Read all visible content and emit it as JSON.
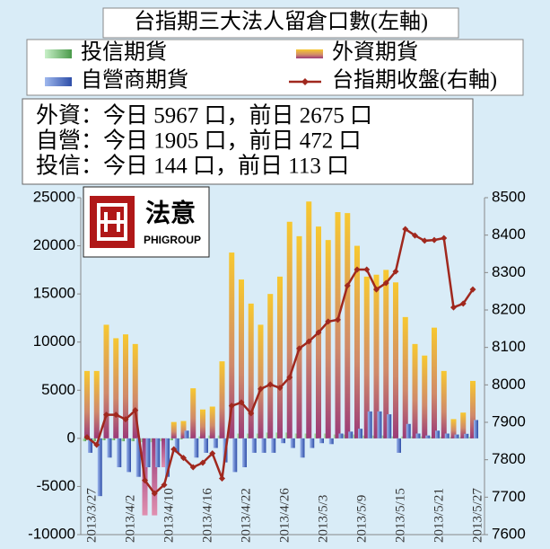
{
  "chart_data": {
    "type": "bar",
    "title": "台指期三大法人留倉口數(左軸)",
    "annotations": [
      "外資：今日 5967 口，前日 2675 口",
      "自營：今日 1905 口，前日 472 口",
      "投信：今日 144 口，前日 113 口"
    ],
    "logo": {
      "name": "法意",
      "sub": "PHIGROUP"
    },
    "categories": [
      "2013/3/27",
      null,
      null,
      null,
      "2013/4/2",
      null,
      null,
      null,
      "2013/4/10",
      null,
      null,
      null,
      "2013/4/16",
      null,
      null,
      null,
      "2013/4/22",
      null,
      null,
      null,
      "2013/4/26",
      null,
      null,
      null,
      "2013/5/3",
      null,
      null,
      null,
      "2013/5/9",
      null,
      null,
      null,
      "2013/5/15",
      null,
      null,
      null,
      "2013/5/21",
      null,
      null,
      null,
      "2013/5/27"
    ],
    "series": [
      {
        "name": "投信期貨",
        "type": "bar",
        "color": "#7fc97f",
        "values": [
          -300,
          -300,
          -200,
          -200,
          -300,
          -300,
          -400,
          -400,
          -300,
          -200,
          -100,
          100,
          200,
          300,
          300,
          400,
          500,
          500,
          500,
          600,
          600,
          600,
          500,
          500,
          500,
          500,
          400,
          400,
          400,
          300,
          300,
          300,
          200,
          200,
          200,
          200,
          150,
          150,
          120,
          113,
          144
        ]
      },
      {
        "name": "外資期貨",
        "type": "bar",
        "color": "#f2c12e",
        "values": [
          7000,
          7000,
          11800,
          10400,
          10800,
          9800,
          -8000,
          -8000,
          -3000,
          1700,
          1800,
          5200,
          3000,
          3300,
          8000,
          19300,
          16500,
          14000,
          11800,
          15000,
          16800,
          22500,
          21000,
          24600,
          22000,
          20600,
          23500,
          23400,
          20000,
          16800,
          17000,
          17500,
          16200,
          12600,
          9800,
          8600,
          11500,
          7000,
          2000,
          2675,
          5967
        ]
      },
      {
        "name": "自營商期貨",
        "type": "bar",
        "color": "#4f6fc4",
        "values": [
          -1500,
          -6000,
          -2000,
          -3000,
          -3500,
          -4000,
          -3000,
          -3000,
          -4000,
          -1500,
          800,
          -2000,
          -1500,
          -1000,
          -2500,
          -3500,
          -3000,
          -1500,
          -1500,
          -1500,
          -500,
          -1000,
          -2000,
          -1000,
          -500,
          -600,
          500,
          700,
          1000,
          2800,
          2800,
          2500,
          -1500,
          1500,
          500,
          300,
          800,
          500,
          400,
          472,
          1905
        ]
      },
      {
        "name": "台指期收盤(右軸)",
        "type": "line",
        "axis": "y2",
        "color": "#a0281e",
        "values": [
          7860,
          7840,
          7920,
          7920,
          7908,
          7932,
          7745,
          7710,
          7733,
          7828,
          7805,
          7780,
          7792,
          7817,
          7750,
          7944,
          7953,
          7924,
          7989,
          8001,
          7992,
          8020,
          8097,
          8116,
          8140,
          8169,
          8174,
          8265,
          8308,
          8308,
          8255,
          8272,
          8303,
          8416,
          8399,
          8385,
          8387,
          8392,
          8207,
          8217,
          8255
        ]
      }
    ],
    "ylim": [
      -10000,
      25000
    ],
    "yticks": [
      -10000,
      -5000,
      0,
      5000,
      10000,
      15000,
      20000,
      25000
    ],
    "y2lim": [
      7600,
      8500
    ],
    "y2ticks": [
      7600,
      7700,
      7800,
      7900,
      8000,
      8100,
      8200,
      8300,
      8400,
      8500
    ],
    "grid": false
  }
}
